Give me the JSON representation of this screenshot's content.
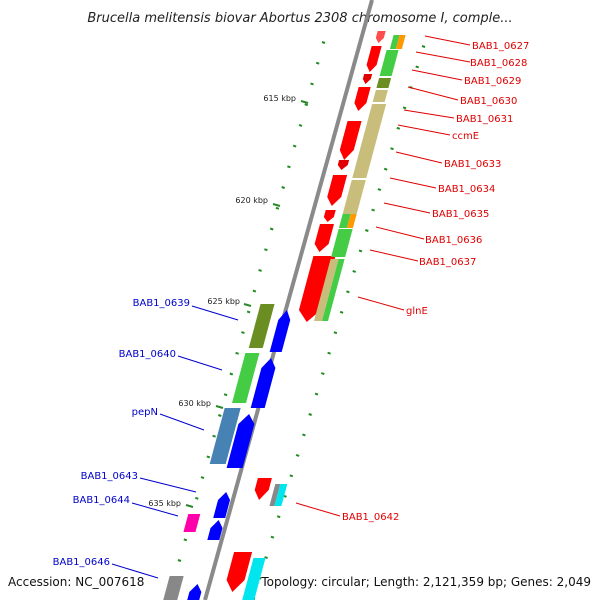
{
  "title": "Brucella melitensis biovar Abortus 2308 chromosome I, comple...",
  "accession": "Accession: NC_007618",
  "topology": "Topology: circular; Length: 2,121,359 bp; Genes: 2,049",
  "scale_labels": [
    "615 kbp",
    "620 kbp",
    "625 kbp",
    "630 kbp",
    "635 kbp"
  ],
  "genes_right": [
    "BAB1_0627",
    "BAB1_0628",
    "BAB1_0629",
    "BAB1_0630",
    "BAB1_0631",
    "ccmE",
    "BAB1_0633",
    "BAB1_0634",
    "BAB1_0635",
    "BAB1_0636",
    "BAB1_0637",
    "glnE",
    "BAB1_0642"
  ],
  "genes_left": [
    "BAB1_0639",
    "BAB1_0640",
    "pepN",
    "BAB1_0643",
    "BAB1_0644",
    "BAB1_0646"
  ],
  "colors": {
    "forward_label": "#e00000",
    "reverse_label": "#0000cc",
    "backbone": "#888888",
    "tick": "#228b22",
    "forward_feature": "#ff0000",
    "reverse_feature": "#0000ff",
    "gene_green": "#44cc44",
    "gene_khaki": "#c8bd7a",
    "gene_olive": "#6b8e23",
    "gene_orange": "#ff9900",
    "gene_steelblue": "#4682b4",
    "gene_magenta": "#ff00aa",
    "gene_gray": "#888888",
    "gene_cyan": "#00e5ee"
  }
}
